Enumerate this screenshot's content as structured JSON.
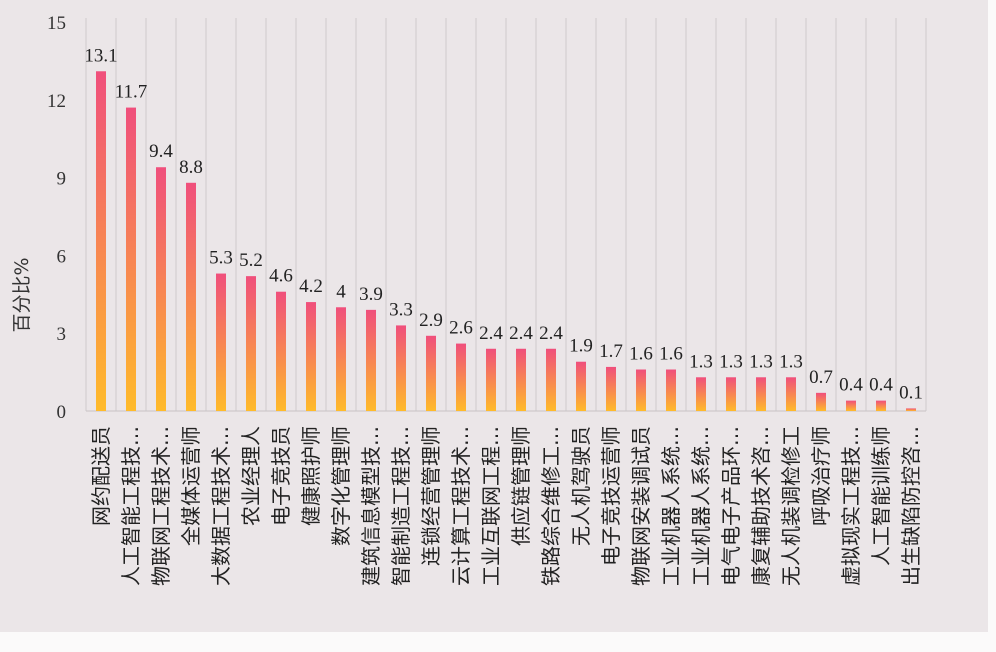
{
  "chart_data": {
    "type": "bar",
    "title": "",
    "xlabel": "",
    "ylabel": "百分比%",
    "ylim": [
      0,
      15
    ],
    "yticks": [
      0,
      3,
      6,
      9,
      12,
      15
    ],
    "grid": "vertical separators",
    "legend": "none",
    "colors": {
      "bar_top": "#f04f7c",
      "bar_bottom": "#ffbb2a",
      "background": "#ebe6e8"
    },
    "categories": [
      "网约配送员",
      "人工智能工程技…",
      "物联网工程技术…",
      "全媒体运营师",
      "大数据工程技术…",
      "农业经理人",
      "电子竞技员",
      "健康照护师",
      "数字化管理师",
      "建筑信息模型技…",
      "智能制造工程技…",
      "连锁经营管理师",
      "云计算工程技术…",
      "工业互联网工程…",
      "供应链管理师",
      "铁路综合维修工…",
      "无人机驾驶员",
      "电子竞技运营师",
      "物联网安装调试员",
      "工业机器人系统…",
      "工业机器人系统…",
      "电气电子产品环…",
      "康复辅助技术咨…",
      "无人机装调检修工",
      "呼吸治疗师",
      "虚拟现实工程技…",
      "人工智能训练师",
      "出生缺陷防控咨…"
    ],
    "values": [
      13.1,
      11.7,
      9.4,
      8.8,
      5.3,
      5.2,
      4.6,
      4.2,
      4,
      3.9,
      3.3,
      2.9,
      2.6,
      2.4,
      2.4,
      2.4,
      1.9,
      1.7,
      1.6,
      1.6,
      1.3,
      1.3,
      1.3,
      1.3,
      0.7,
      0.4,
      0.4,
      0.1
    ]
  }
}
